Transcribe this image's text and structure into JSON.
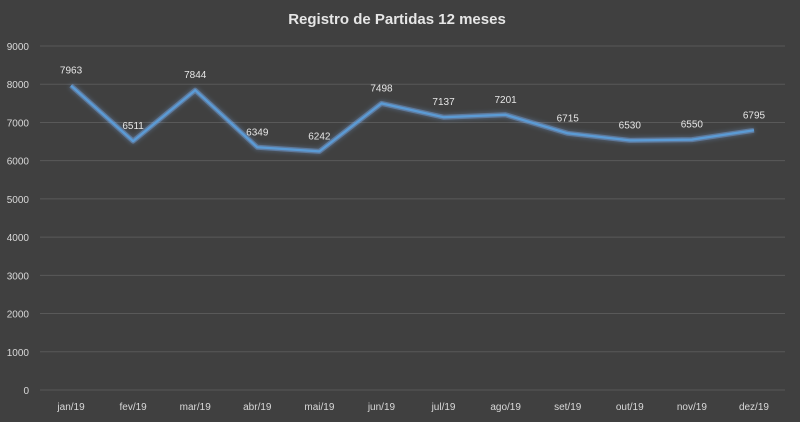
{
  "chart_data": {
    "type": "line",
    "title": "Registro de Partidas 12 meses",
    "categories": [
      "jan/19",
      "fev/19",
      "mar/19",
      "abr/19",
      "mai/19",
      "jun/19",
      "jul/19",
      "ago/19",
      "set/19",
      "out/19",
      "nov/19",
      "dez/19"
    ],
    "series": [
      {
        "name": "Partidas",
        "values": [
          7963,
          6511,
          7844,
          6349,
          6242,
          7498,
          7137,
          7201,
          6715,
          6530,
          6550,
          6795
        ]
      }
    ],
    "data_labels": [
      "7963",
      "6511",
      "7844",
      "6349",
      "6242",
      "7498",
      "7137",
      "7201",
      "6715",
      "6530",
      "6550",
      "6795"
    ],
    "y_ticks": [
      "0",
      "1000",
      "2000",
      "3000",
      "4000",
      "5000",
      "6000",
      "7000",
      "8000",
      "9000"
    ],
    "ylim": [
      0,
      9000
    ],
    "xlabel": "",
    "ylabel": "",
    "grid": true,
    "legend": "none",
    "colors": {
      "background": "#404040",
      "line": "#5b9bd5",
      "glow": "#7fb8ff",
      "grid": "#595959",
      "text": "#d9d9d9"
    }
  }
}
